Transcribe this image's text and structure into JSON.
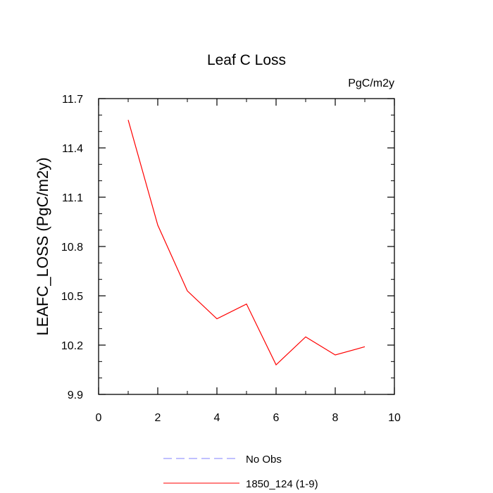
{
  "chart_data": {
    "type": "line",
    "title": "Leaf C Loss",
    "units": "PgC/m2y",
    "xlabel": "",
    "ylabel": "LEAFC_LOSS  (PgC/m2y)",
    "xlim": [
      0,
      10
    ],
    "ylim": [
      9.9,
      11.7
    ],
    "x_ticks": [
      0,
      2,
      4,
      6,
      8,
      10
    ],
    "x_tick_labels": [
      "0",
      "2",
      "4",
      "6",
      "8",
      "10"
    ],
    "y_ticks": [
      9.9,
      10.2,
      10.5,
      10.8,
      11.1,
      11.4,
      11.7
    ],
    "y_tick_labels": [
      "9.9",
      "10.2",
      "10.5",
      "10.8",
      "11.1",
      "11.4",
      "11.7"
    ],
    "grid": false,
    "legend_position": "bottom-center",
    "series": [
      {
        "name": "1850_124 (1-9)",
        "color": "#ff0000",
        "style": "solid",
        "x": [
          1,
          2,
          3,
          4,
          5,
          6,
          7,
          8,
          9
        ],
        "values": [
          11.57,
          10.93,
          10.53,
          10.36,
          10.45,
          10.08,
          10.25,
          10.14,
          10.19
        ]
      }
    ],
    "legend": [
      {
        "label": "No Obs",
        "color": "#8080ff",
        "style": "dashed"
      },
      {
        "label": "1850_124 (1-9)",
        "color": "#ff0000",
        "style": "solid"
      }
    ]
  }
}
